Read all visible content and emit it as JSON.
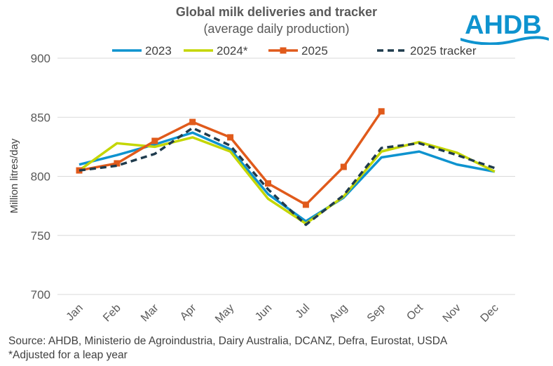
{
  "chart_data": {
    "type": "line",
    "title": "Global milk deliveries and tracker",
    "subtitle": "(average daily production)",
    "ylabel": "Million litres/day",
    "xlabel": "",
    "ylim": [
      700,
      900
    ],
    "yticks": [
      700,
      750,
      800,
      850,
      900
    ],
    "grid": true,
    "legend": "top",
    "categories": [
      "Jan",
      "Feb",
      "Mar",
      "Apr",
      "May",
      "Jun",
      "Jul",
      "Aug",
      "Sep",
      "Oct",
      "Nov",
      "Dec"
    ],
    "series": [
      {
        "name": "2023",
        "color": "#0E93CF",
        "style": "solid",
        "values": [
          810,
          818,
          827,
          837,
          823,
          785,
          762,
          782,
          816,
          821,
          810,
          804
        ]
      },
      {
        "name": "2024*",
        "color": "#C4D600",
        "style": "solid",
        "values": [
          805,
          828,
          825,
          833,
          821,
          781,
          760,
          783,
          821,
          829,
          820,
          804
        ]
      },
      {
        "name": "2025",
        "color": "#E05A1B",
        "style": "solid-markers",
        "values": [
          805,
          811,
          830,
          846,
          833,
          794,
          776,
          808,
          855,
          null,
          null,
          null
        ]
      },
      {
        "name": "2025 tracker",
        "color": "#1F3B4D",
        "style": "dashed",
        "values": [
          805,
          809,
          819,
          841,
          826,
          789,
          759,
          784,
          824,
          828,
          818,
          807
        ]
      }
    ]
  },
  "logo": {
    "text": "AHDB",
    "color": "#0E93CF"
  },
  "footer": {
    "source": "Source: AHDB, Ministerio de Agroindustria, Dairy Australia, DCANZ, Defra, Eurostat, USDA",
    "note": "*Adjusted for a leap year"
  }
}
